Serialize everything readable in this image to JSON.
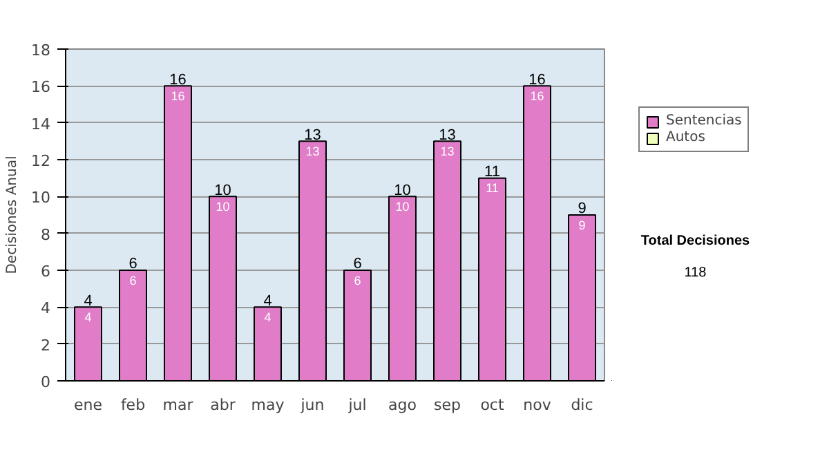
{
  "chart_data": {
    "type": "bar",
    "ylabel": "Decisiones Anual",
    "categories": [
      "ene",
      "feb",
      "mar",
      "abr",
      "may",
      "jun",
      "jul",
      "ago",
      "sep",
      "oct",
      "nov",
      "dic"
    ],
    "series": [
      {
        "name": "Sentencias",
        "color": "#e07cc8",
        "values": [
          4,
          6,
          16,
          10,
          4,
          13,
          6,
          10,
          13,
          11,
          16,
          9
        ]
      },
      {
        "name": "Autos",
        "color": "#eeffbb",
        "values": [
          null,
          null,
          null,
          null,
          null,
          null,
          null,
          null,
          null,
          null,
          null,
          null
        ]
      }
    ],
    "stacked": true,
    "data_labels": true,
    "totals": [
      "4",
      "6",
      "16",
      "10",
      "4",
      "13",
      "6",
      "10",
      "13",
      "11",
      "16",
      "9"
    ],
    "ylim": [
      0,
      18
    ],
    "yticks": [
      0,
      2,
      4,
      6,
      8,
      10,
      12,
      14,
      16,
      18
    ],
    "grid": "y",
    "legend": "right",
    "annotations": [
      "Total Decisiones",
      "118"
    ]
  }
}
